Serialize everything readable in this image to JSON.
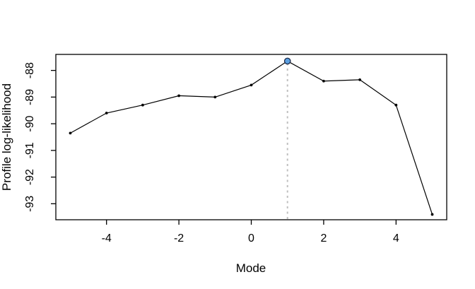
{
  "figure": {
    "background": "#ffffff"
  },
  "chart_data": {
    "type": "line",
    "title": "",
    "xlabel": "Mode",
    "ylabel": "Profile log-likelihood",
    "x": [
      -5,
      -4,
      -3,
      -2,
      -1,
      0,
      1,
      2,
      3,
      4,
      5
    ],
    "y": [
      -90.35,
      -89.6,
      -89.3,
      -88.95,
      -89.0,
      -88.55,
      -87.65,
      -88.4,
      -88.35,
      -89.3,
      -93.4
    ],
    "x_ticks": [
      -4,
      -2,
      0,
      2,
      4
    ],
    "y_ticks": [
      -88,
      -89,
      -90,
      -91,
      -92,
      -93
    ],
    "xlim": [
      -5.4,
      5.4
    ],
    "ylim": [
      -93.6,
      -87.4
    ],
    "grid": false,
    "legend": "none",
    "line_color": "#000000",
    "marker_color": "#000000",
    "axis_color": "#000000",
    "highlight_point": {
      "x": 1,
      "y": -87.65,
      "fill": "#5b9fe0",
      "stroke": "#1b2a4a"
    },
    "vline": {
      "x": 1,
      "color": "#bfbfbf",
      "style": "dotted"
    }
  }
}
